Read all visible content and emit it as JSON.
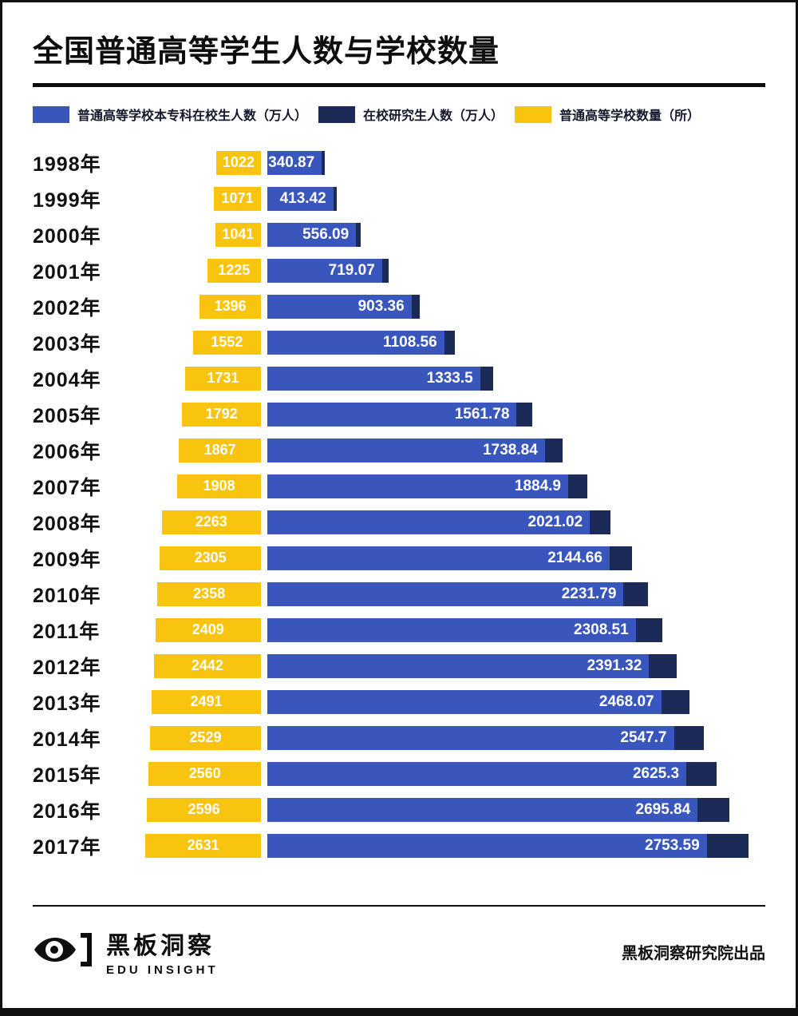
{
  "title": "全国普通高等学生人数与学校数量",
  "legend": {
    "items": [
      {
        "label": "普通高等学校本专科在校生人数（万人）",
        "color": "#3956bd"
      },
      {
        "label": "在校研究生人数（万人）",
        "color": "#1b2a57"
      },
      {
        "label": "普通高等学校数量（所）",
        "color": "#f9c40f"
      }
    ]
  },
  "chart_data": {
    "type": "bar",
    "orientation": "horizontal",
    "title": "全国普通高等学生人数与学校数量",
    "categories": [
      "1998年",
      "1999年",
      "2000年",
      "2001年",
      "2002年",
      "2003年",
      "2004年",
      "2005年",
      "2006年",
      "2007年",
      "2008年",
      "2009年",
      "2010年",
      "2011年",
      "2012年",
      "2013年",
      "2014年",
      "2015年",
      "2016年",
      "2017年"
    ],
    "series": [
      {
        "name": "普通高等学校本专科在校生人数（万人）",
        "color": "#3956bd",
        "values": [
          340.87,
          413.42,
          556.09,
          719.07,
          903.36,
          1108.56,
          1333.5,
          1561.78,
          1738.84,
          1884.9,
          2021.02,
          2144.66,
          2231.79,
          2308.51,
          2391.32,
          2468.07,
          2547.7,
          2625.3,
          2695.84,
          2753.59
        ],
        "labels": [
          "340.87",
          "413.42",
          "556.09",
          "719.07",
          "903.36",
          "1108.56",
          "1333.5",
          "1561.78",
          "1738.84",
          "1884.9",
          "2021.02",
          "2144.66",
          "2231.79",
          "2308.51",
          "2391.32",
          "2468.07",
          "2547.7",
          "2625.3",
          "2695.84",
          "2753.59"
        ]
      },
      {
        "name": "在校研究生人数（万人）",
        "color": "#1b2a57",
        "values_estimated_from_bar_widths": true,
        "values": [
          20,
          23,
          30,
          39,
          50,
          65,
          82,
          98,
          110,
          120,
          128,
          140,
          154,
          165,
          172,
          179,
          185,
          191,
          198,
          264
        ]
      },
      {
        "name": "普通高等学校数量（所）",
        "color": "#f9c40f",
        "values": [
          1022,
          1071,
          1041,
          1225,
          1396,
          1552,
          1731,
          1792,
          1867,
          1908,
          2263,
          2305,
          2358,
          2409,
          2442,
          2491,
          2529,
          2560,
          2596,
          2631
        ]
      }
    ],
    "value_labels_position": "inside-end",
    "axes_hidden": true,
    "legend_position": "top"
  },
  "footer": {
    "brand": "黑板洞察",
    "brand_sub": "EDU INSIGHT",
    "credit": "黑板洞察研究院出品"
  }
}
